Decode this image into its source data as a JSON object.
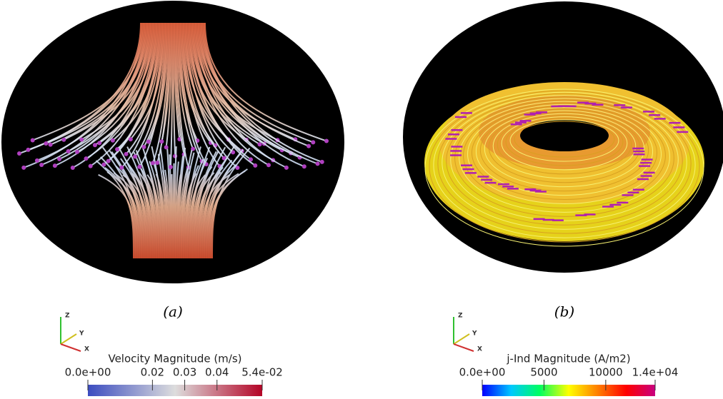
{
  "panels": [
    {
      "caption": "(a)",
      "axes": [
        "Z",
        "Y",
        "X"
      ],
      "colorbar": {
        "title": "Velocity Magnitude (m/s)",
        "lim": [
          0,
          0.054
        ],
        "ticks": [
          {
            "value": 0,
            "label": "0.0e+00"
          },
          0.02,
          0.03,
          0.04,
          {
            "value": 0.054,
            "label": "5.4e-02"
          }
        ],
        "colors": [
          "#3b4cc0",
          "#dddddd",
          "#b40426"
        ]
      }
    },
    {
      "caption": "(b)",
      "axes": [
        "Z",
        "Y",
        "X"
      ],
      "colorbar": {
        "title": "j-Ind Magnitude (A/m2)",
        "lim": [
          0,
          14000
        ],
        "ticks": [
          {
            "value": 0,
            "label": "0.0e+00"
          },
          5000,
          10000,
          {
            "value": 14000,
            "label": "1.4e+04"
          }
        ],
        "colors": [
          "#0000ff",
          "#00c8ff",
          "#00ff60",
          "#ffff00",
          "#ff8000",
          "#ff0000",
          "#c80080"
        ]
      }
    }
  ]
}
